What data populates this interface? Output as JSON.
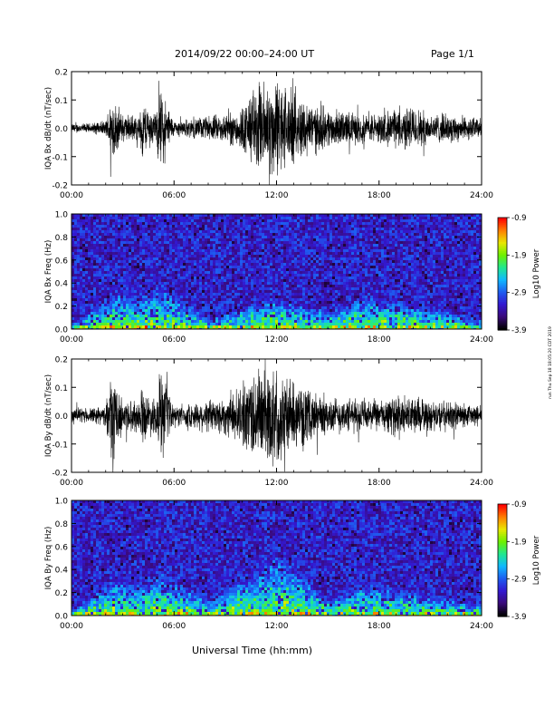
{
  "header": {
    "title": "2014/09/22  00:00–24:00 UT",
    "page": "Page 1/1"
  },
  "footer": {
    "xlabel": "Universal Time (hh:mm)",
    "credit": "run Thu Sep 18 18:05:20 CDT 2019"
  },
  "colorbar": {
    "label": "Log10 Power",
    "ticks": [
      "-0.9",
      "-1.9",
      "-2.9",
      "-3.9"
    ],
    "range": [
      -3.9,
      -0.9
    ],
    "colors": [
      "#000000",
      "#3a0a7a",
      "#3318d0",
      "#1e5cf0",
      "#10b8ff",
      "#20e890",
      "#6cf000",
      "#e8e800",
      "#ff8000",
      "#ff0000"
    ]
  },
  "chart_data": [
    {
      "type": "line",
      "ylabel": "IQA Bx dB/dt (nT/sec)",
      "xlim": [
        0,
        24
      ],
      "ylim": [
        -0.2,
        0.2
      ],
      "xticks": [
        "00:00",
        "06:00",
        "12:00",
        "18:00",
        "24:00"
      ],
      "yticks": [
        "0.2",
        "0.1",
        "0.0",
        "-0.1",
        "-0.2"
      ],
      "series": [
        {
          "x": [
            0,
            1,
            2,
            2.4,
            2.6,
            3,
            4,
            4.1,
            4.3,
            5,
            5.1,
            5.2,
            5.3,
            6,
            7,
            8,
            9,
            10,
            10.5,
            11,
            11.5,
            12,
            12.5,
            13,
            14,
            15,
            16,
            17,
            18,
            19,
            20,
            21,
            22,
            23,
            24
          ],
          "amp": [
            0.02,
            0.02,
            0.03,
            0.15,
            0.1,
            0.06,
            0.05,
            0.14,
            0.1,
            0.06,
            0.2,
            0.19,
            0.15,
            0.03,
            0.04,
            0.05,
            0.06,
            0.09,
            0.15,
            0.19,
            0.2,
            0.2,
            0.18,
            0.14,
            0.11,
            0.08,
            0.07,
            0.06,
            0.06,
            0.08,
            0.09,
            0.06,
            0.06,
            0.05,
            0.04
          ]
        }
      ]
    },
    {
      "type": "heatmap",
      "ylabel": "IQA Bx Freq (Hz)",
      "xlim": [
        0,
        24
      ],
      "ylim": [
        0,
        1
      ],
      "xticks": [
        "00:00",
        "06:00",
        "12:00",
        "18:00",
        "24:00"
      ],
      "yticks": [
        "1.0",
        "0.8",
        "0.6",
        "0.4",
        "0.2",
        "0.0"
      ],
      "activity": [
        {
          "t": 0,
          "peak_hz": 0.05
        },
        {
          "t": 2.5,
          "peak_hz": 0.35
        },
        {
          "t": 4.0,
          "peak_hz": 0.3
        },
        {
          "t": 5.1,
          "peak_hz": 0.42
        },
        {
          "t": 8,
          "peak_hz": 0.1
        },
        {
          "t": 11.5,
          "peak_hz": 0.3
        },
        {
          "t": 15,
          "peak_hz": 0.18
        },
        {
          "t": 17,
          "peak_hz": 0.3
        },
        {
          "t": 20.5,
          "peak_hz": 0.22
        },
        {
          "t": 24,
          "peak_hz": 0.1
        }
      ]
    },
    {
      "type": "line",
      "ylabel": "IQA By dB/dt (nT/sec)",
      "xlim": [
        0,
        24
      ],
      "ylim": [
        -0.2,
        0.2
      ],
      "xticks": [
        "00:00",
        "06:00",
        "12:00",
        "18:00",
        "24:00"
      ],
      "yticks": [
        "0.2",
        "0.1",
        "0.0",
        "-0.1",
        "-0.2"
      ],
      "series": [
        {
          "x": [
            0,
            1,
            2,
            2.4,
            2.6,
            3,
            4,
            4.1,
            4.3,
            5,
            5.1,
            5.2,
            5.3,
            6,
            7,
            8,
            9,
            10,
            10.5,
            11,
            11.5,
            12,
            12.5,
            13,
            14,
            15,
            16,
            17,
            18,
            19,
            20,
            21,
            22,
            23,
            24
          ],
          "amp": [
            0.03,
            0.03,
            0.04,
            0.2,
            0.12,
            0.07,
            0.06,
            0.13,
            0.09,
            0.07,
            0.2,
            0.2,
            0.16,
            0.04,
            0.05,
            0.07,
            0.08,
            0.12,
            0.18,
            0.2,
            0.2,
            0.2,
            0.17,
            0.13,
            0.1,
            0.08,
            0.07,
            0.07,
            0.06,
            0.08,
            0.08,
            0.06,
            0.06,
            0.05,
            0.04
          ]
        }
      ]
    },
    {
      "type": "heatmap",
      "ylabel": "IQA By Freq (Hz)",
      "xlim": [
        0,
        24
      ],
      "ylim": [
        0,
        1
      ],
      "xticks": [
        "00:00",
        "06:00",
        "12:00",
        "18:00",
        "24:00"
      ],
      "yticks": [
        "1.0",
        "0.8",
        "0.6",
        "0.4",
        "0.2",
        "0.0"
      ],
      "activity": [
        {
          "t": 0,
          "peak_hz": 0.06
        },
        {
          "t": 2.5,
          "peak_hz": 0.35
        },
        {
          "t": 4.0,
          "peak_hz": 0.28
        },
        {
          "t": 5.1,
          "peak_hz": 0.4
        },
        {
          "t": 8,
          "peak_hz": 0.14
        },
        {
          "t": 12,
          "peak_hz": 0.55
        },
        {
          "t": 15,
          "peak_hz": 0.16
        },
        {
          "t": 17,
          "peak_hz": 0.3
        },
        {
          "t": 20.5,
          "peak_hz": 0.2
        },
        {
          "t": 24,
          "peak_hz": 0.1
        }
      ]
    }
  ]
}
